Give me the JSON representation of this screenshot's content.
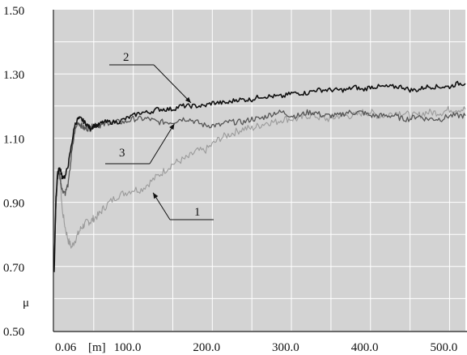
{
  "chart_data": {
    "type": "line",
    "xlim": [
      0.06,
      520
    ],
    "ylim": [
      0.5,
      1.5
    ],
    "grid": true,
    "x_ticks": [
      {
        "value": 0.06,
        "label": "0.06"
      },
      {
        "value": 100,
        "label": "100.0"
      },
      {
        "value": 200,
        "label": "200.0"
      },
      {
        "value": 300,
        "label": "300.0"
      },
      {
        "value": 400,
        "label": "400.0"
      },
      {
        "value": 500,
        "label": "500.0"
      }
    ],
    "x_unit_label": "[m]",
    "y_ticks": [
      {
        "value": 1.5,
        "label": "1.50"
      },
      {
        "value": 1.3,
        "label": "1.30"
      },
      {
        "value": 1.1,
        "label": "1.10"
      },
      {
        "value": 0.9,
        "label": "0.90"
      },
      {
        "value": 0.7,
        "label": "0.70"
      },
      {
        "value": 0.5,
        "label": "0.50"
      }
    ],
    "ylabel": "μ",
    "colors": {
      "series_1": "#9a9a9a",
      "series_2": "#111111",
      "series_3": "#555555",
      "plot_bg": "#d3d3d3",
      "grid": "#ffffff"
    },
    "series": [
      {
        "name": "1",
        "x": [
          0,
          2,
          4,
          6,
          8,
          10,
          14,
          18,
          22,
          26,
          30,
          34,
          38,
          42,
          46,
          50,
          56,
          62,
          70,
          80,
          90,
          100,
          110,
          120,
          130,
          140,
          150,
          160,
          170,
          180,
          190,
          200,
          210,
          220,
          230,
          240,
          250,
          260,
          270,
          280,
          290,
          300,
          310,
          320,
          330,
          340,
          350,
          360,
          370,
          380,
          390,
          400,
          410,
          420,
          430,
          440,
          450,
          460,
          470,
          480,
          490,
          500,
          510,
          520
        ],
        "y": [
          0.72,
          0.9,
          0.98,
          1.0,
          0.96,
          0.88,
          0.82,
          0.78,
          0.76,
          0.78,
          0.8,
          0.82,
          0.83,
          0.84,
          0.84,
          0.85,
          0.86,
          0.88,
          0.9,
          0.92,
          0.93,
          0.94,
          0.94,
          0.96,
          0.98,
          1.0,
          1.02,
          1.03,
          1.04,
          1.06,
          1.06,
          1.08,
          1.1,
          1.11,
          1.12,
          1.13,
          1.13,
          1.14,
          1.15,
          1.15,
          1.16,
          1.16,
          1.16,
          1.17,
          1.17,
          1.16,
          1.16,
          1.17,
          1.17,
          1.17,
          1.18,
          1.18,
          1.17,
          1.17,
          1.18,
          1.18,
          1.17,
          1.17,
          1.18,
          1.18,
          1.18,
          1.19,
          1.19,
          1.19
        ]
      },
      {
        "name": "2",
        "x": [
          0,
          2,
          4,
          6,
          8,
          10,
          14,
          18,
          22,
          26,
          30,
          34,
          38,
          42,
          46,
          50,
          56,
          62,
          70,
          80,
          90,
          100,
          110,
          120,
          130,
          140,
          150,
          160,
          170,
          180,
          190,
          200,
          210,
          220,
          230,
          240,
          250,
          260,
          270,
          280,
          290,
          300,
          310,
          320,
          330,
          340,
          350,
          360,
          370,
          380,
          390,
          400,
          410,
          420,
          430,
          440,
          450,
          460,
          470,
          480,
          490,
          500,
          510,
          520
        ],
        "y": [
          0.68,
          0.9,
          0.98,
          1.01,
          1.0,
          0.98,
          0.98,
          1.02,
          1.08,
          1.14,
          1.16,
          1.16,
          1.15,
          1.14,
          1.13,
          1.14,
          1.14,
          1.15,
          1.15,
          1.15,
          1.16,
          1.17,
          1.18,
          1.18,
          1.19,
          1.19,
          1.19,
          1.2,
          1.2,
          1.2,
          1.2,
          1.21,
          1.21,
          1.21,
          1.22,
          1.22,
          1.22,
          1.23,
          1.23,
          1.23,
          1.23,
          1.24,
          1.24,
          1.24,
          1.25,
          1.25,
          1.25,
          1.25,
          1.25,
          1.26,
          1.25,
          1.26,
          1.26,
          1.26,
          1.26,
          1.26,
          1.25,
          1.25,
          1.26,
          1.26,
          1.26,
          1.26,
          1.27,
          1.27
        ]
      },
      {
        "name": "3",
        "x": [
          0,
          2,
          4,
          6,
          8,
          10,
          14,
          18,
          22,
          26,
          30,
          34,
          38,
          42,
          46,
          50,
          56,
          62,
          70,
          80,
          90,
          100,
          110,
          120,
          130,
          140,
          150,
          160,
          170,
          180,
          190,
          200,
          210,
          220,
          230,
          240,
          250,
          260,
          270,
          280,
          290,
          300,
          310,
          320,
          330,
          340,
          350,
          360,
          370,
          380,
          390,
          400,
          410,
          420,
          430,
          440,
          450,
          460,
          470,
          480,
          490,
          500,
          510,
          520
        ],
        "y": [
          0.7,
          0.88,
          0.97,
          1.0,
          0.97,
          0.94,
          0.93,
          0.96,
          1.05,
          1.12,
          1.15,
          1.14,
          1.13,
          1.13,
          1.13,
          1.14,
          1.14,
          1.14,
          1.15,
          1.15,
          1.15,
          1.16,
          1.16,
          1.16,
          1.15,
          1.15,
          1.15,
          1.16,
          1.16,
          1.15,
          1.14,
          1.14,
          1.14,
          1.15,
          1.15,
          1.15,
          1.16,
          1.16,
          1.17,
          1.18,
          1.18,
          1.17,
          1.17,
          1.18,
          1.18,
          1.17,
          1.17,
          1.17,
          1.18,
          1.18,
          1.18,
          1.17,
          1.17,
          1.17,
          1.17,
          1.16,
          1.16,
          1.17,
          1.16,
          1.16,
          1.16,
          1.17,
          1.17,
          1.17
        ]
      }
    ],
    "annotations": [
      {
        "label": "1",
        "series": "1",
        "target_x": 125,
        "target_y": 0.93
      },
      {
        "label": "2",
        "series": "2",
        "target_x": 173,
        "target_y": 1.21
      },
      {
        "label": "3",
        "series": "3",
        "target_x": 152,
        "target_y": 1.145
      }
    ]
  }
}
